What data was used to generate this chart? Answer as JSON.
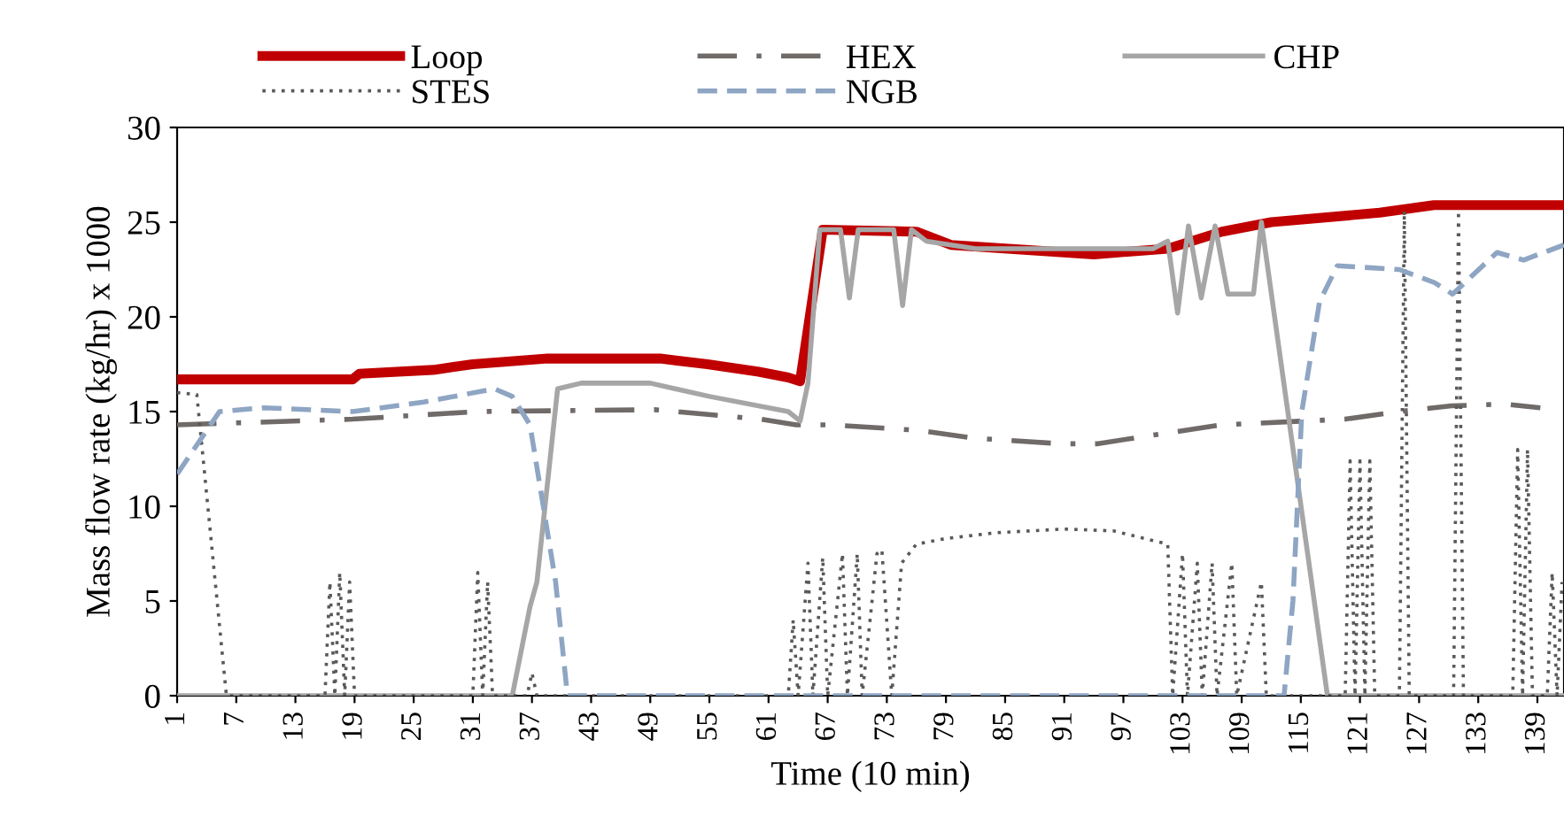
{
  "chart_data": {
    "type": "line",
    "xlabel": "Time (10 min)",
    "ylabel": "Mass flow rate (kg/hr) x 1000",
    "xlim": [
      1,
      141.7
    ],
    "xticks": [
      1,
      7,
      13,
      19,
      25,
      31,
      37,
      43,
      49,
      55,
      61,
      67,
      73,
      79,
      85,
      91,
      97,
      103,
      109,
      115,
      121,
      127,
      133,
      139
    ],
    "ylim": [
      0,
      30
    ],
    "yticks": [
      0,
      5,
      10,
      15,
      20,
      25,
      30
    ],
    "grid": false,
    "legend": "top",
    "marker": "none",
    "series": [
      {
        "name": "Loop",
        "color": "#c00000",
        "line_style": "solid",
        "x": [
          1,
          18.8,
          19.5,
          27,
          31,
          38.6,
          50,
          54.8,
          60,
          63,
          64.2,
          66.5,
          76,
          79.5,
          94,
          101.5,
          107,
          112,
          123,
          128.5,
          141.7
        ],
        "values": [
          16.7,
          16.7,
          17,
          17.2,
          17.5,
          17.8,
          17.8,
          17.5,
          17.1,
          16.8,
          16.6,
          24.6,
          24.5,
          23.8,
          23.3,
          23.6,
          24.5,
          25,
          25.5,
          25.9,
          25.9
        ]
      },
      {
        "name": "HEX",
        "color": "#706a68",
        "line_style": "dashdot",
        "x": [
          1,
          18.8,
          31.4,
          49.4,
          60.2,
          63.8,
          67.4,
          76.4,
          81.8,
          90.7,
          94.3,
          106.9,
          119.5,
          124.9,
          130.3,
          135.7,
          139.3
        ],
        "values": [
          14.3,
          14.6,
          15,
          15.1,
          14.6,
          14.3,
          14.3,
          14,
          13.6,
          13.3,
          13.3,
          14.3,
          14.6,
          15,
          15.3,
          15.4,
          15.2
        ]
      },
      {
        "name": "CHP",
        "color": "#a6a6a6",
        "line_style": "solid",
        "x": [
          1,
          35,
          36.8,
          37.5,
          39.6,
          42,
          49,
          55,
          63,
          64.2,
          65,
          66.2,
          68.3,
          69.2,
          70.1,
          73.7,
          74.6,
          75.5,
          77,
          82,
          100,
          101.5,
          102.5,
          103.6,
          104.9,
          106.3,
          107.6,
          110.2,
          111,
          117.7,
          141.7
        ],
        "values": [
          0,
          0,
          4.7,
          6,
          16.2,
          16.5,
          16.5,
          15.8,
          15,
          14.5,
          16.5,
          24.6,
          24.6,
          21,
          24.6,
          24.6,
          20.6,
          24.6,
          24,
          23.6,
          23.6,
          24,
          20.2,
          24.8,
          21,
          24.8,
          21.2,
          21.2,
          25,
          0,
          0
        ]
      },
      {
        "name": "STES",
        "color": "#595959",
        "line_style": "dotted",
        "x": [
          1,
          3,
          6,
          16,
          16.5,
          17,
          17.5,
          18,
          18.5,
          19,
          31,
          31.5,
          32,
          32.5,
          33,
          36.5,
          37,
          37.5,
          63,
          63.5,
          64,
          65,
          65.5,
          66.5,
          67,
          68.5,
          69,
          70,
          70.5,
          72,
          72.5,
          73.5,
          74.5,
          76,
          79,
          84,
          91,
          96,
          101.5,
          102,
          103,
          103.5,
          104.5,
          105,
          106,
          106.5,
          108,
          108.5,
          111,
          111.5,
          113,
          119.5,
          120,
          120.5,
          121,
          121.5,
          122,
          122.5,
          125,
          125.5,
          126,
          130.5,
          131,
          131.5,
          136.5,
          137,
          137.5,
          138,
          138.5,
          140,
          140.5,
          141,
          141.5
        ],
        "values": [
          16,
          15.9,
          0,
          0,
          6,
          0,
          6.5,
          0,
          6,
          0,
          0,
          6.5,
          0,
          6,
          0,
          0,
          1.2,
          0,
          0,
          4,
          0,
          7,
          0,
          7.3,
          0,
          7.5,
          0,
          7.5,
          0,
          7.5,
          7.7,
          0,
          7,
          8,
          8.3,
          8.6,
          8.8,
          8.7,
          8,
          0,
          7.5,
          0,
          7,
          0,
          7,
          0,
          7,
          0,
          6,
          0,
          0,
          0,
          12.4,
          0,
          12.4,
          0,
          12.4,
          0,
          0,
          25.6,
          0,
          0,
          25.6,
          0,
          0,
          13,
          0,
          13,
          0,
          0,
          6.5,
          0,
          6
        ]
      },
      {
        "name": "NGB",
        "color": "#8ea5c3",
        "line_style": "dashed",
        "x": [
          1,
          5.3,
          9.8,
          18.8,
          26,
          33.2,
          35,
          36.8,
          39.4,
          40.6,
          113.3,
          114.2,
          115.1,
          116.9,
          118.7,
          125,
          128.6,
          130.4,
          134.9,
          137.6,
          141.7
        ],
        "values": [
          11.7,
          15,
          15.2,
          15,
          15.5,
          16.2,
          15.8,
          14.3,
          6,
          0,
          0,
          5,
          15,
          20.8,
          22.7,
          22.5,
          21.8,
          21.2,
          23.4,
          23,
          23.8
        ]
      }
    ]
  }
}
